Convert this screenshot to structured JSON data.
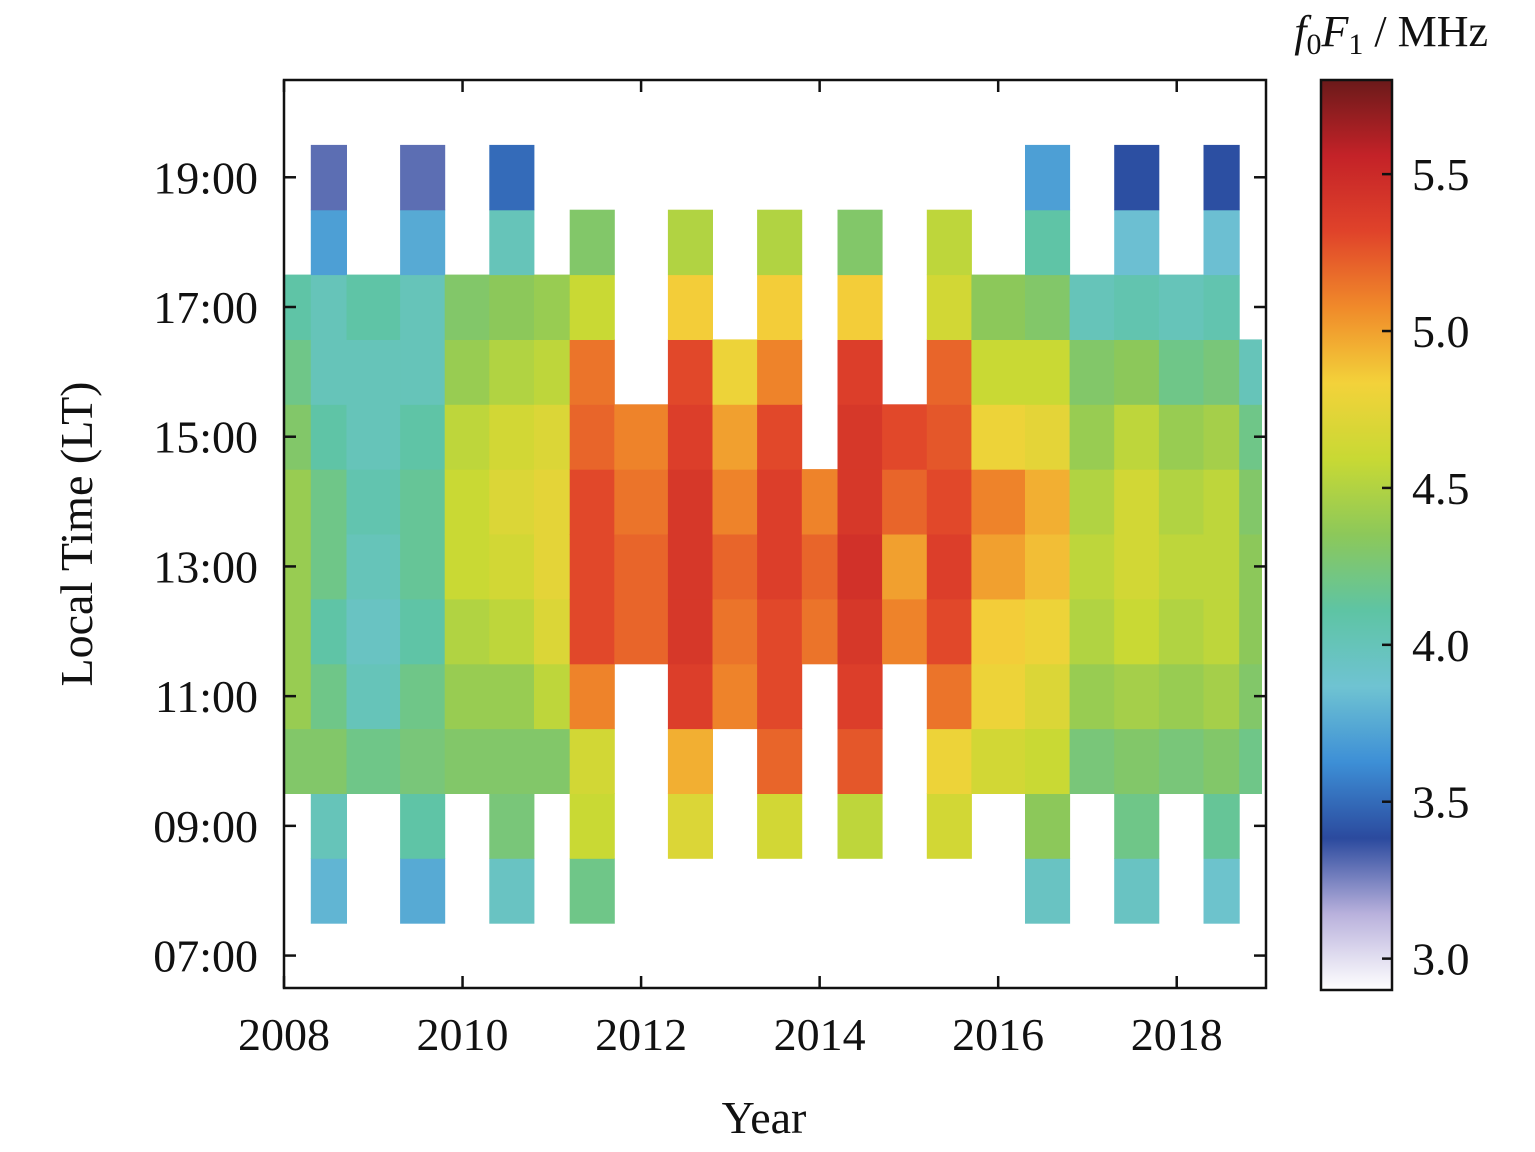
{
  "chart_data": {
    "type": "heatmap",
    "title": "",
    "xlabel": "Year",
    "ylabel": "Local Time (LT)",
    "xlim": [
      2008,
      2019
    ],
    "ylim": [
      6.5,
      20.5
    ],
    "x_ticks": [
      2008,
      2010,
      2012,
      2014,
      2016,
      2018
    ],
    "x_tick_labels": [
      "2008",
      "2010",
      "2012",
      "2014",
      "2016",
      "2018"
    ],
    "y_ticks": [
      7,
      9,
      11,
      13,
      15,
      17,
      19
    ],
    "y_tick_labels": [
      "07:00",
      "09:00",
      "11:00",
      "13:00",
      "15:00",
      "17:00",
      "19:00"
    ],
    "colorbar": {
      "label_italic_f": "f",
      "label_sub0": "0",
      "label_italic_F": "F",
      "label_sub1": "1",
      "label_unit": " / MHz",
      "range": [
        2.9,
        5.8
      ],
      "ticks": [
        3.0,
        3.5,
        4.0,
        4.5,
        5.0,
        5.5
      ],
      "tick_labels": [
        "3.0",
        "3.5",
        "4.0",
        "4.5",
        "5.0",
        "5.5"
      ],
      "colormap": [
        "#ffffff",
        "#b9b1dc",
        "#2b4a9e",
        "#3d8fd6",
        "#6fc3d2",
        "#5ec4a4",
        "#8cc85a",
        "#c8d934",
        "#f3d23a",
        "#f08a2a",
        "#e0432a",
        "#c42228",
        "#6b1a1a"
      ]
    },
    "values_unit": "MHz",
    "grid": false,
    "columns": [
      {
        "x0": 2008.0,
        "x1": 2008.3,
        "cells": [
          [
            9.5,
            10.5,
            4.3
          ],
          [
            10.5,
            11.5,
            4.4
          ],
          [
            11.5,
            12.5,
            4.4
          ],
          [
            12.5,
            13.5,
            4.4
          ],
          [
            13.5,
            14.5,
            4.4
          ],
          [
            14.5,
            15.5,
            4.3
          ],
          [
            15.5,
            16.5,
            4.2
          ],
          [
            16.5,
            17.5,
            4.1
          ]
        ]
      },
      {
        "x0": 2008.3,
        "x1": 2008.7,
        "cells": [
          [
            7.5,
            8.5,
            3.8
          ],
          [
            8.5,
            9.5,
            4.0
          ],
          [
            9.5,
            10.5,
            4.3
          ],
          [
            10.5,
            11.5,
            4.2
          ],
          [
            11.5,
            12.5,
            4.1
          ],
          [
            12.5,
            13.5,
            4.2
          ],
          [
            13.5,
            14.5,
            4.2
          ],
          [
            14.5,
            15.5,
            4.1
          ],
          [
            15.5,
            16.5,
            4.0
          ],
          [
            16.5,
            17.5,
            4.0
          ],
          [
            17.5,
            18.5,
            3.7
          ],
          [
            18.5,
            19.5,
            3.3
          ]
        ]
      },
      {
        "x0": 2008.7,
        "x1": 2009.3,
        "cells": [
          [
            9.5,
            10.5,
            4.2
          ],
          [
            10.5,
            11.5,
            4.0
          ],
          [
            11.5,
            12.5,
            3.95
          ],
          [
            12.5,
            13.5,
            4.0
          ],
          [
            13.5,
            14.5,
            4.05
          ],
          [
            14.5,
            15.5,
            4.0
          ],
          [
            15.5,
            16.5,
            4.0
          ],
          [
            16.5,
            17.5,
            4.1
          ]
        ]
      },
      {
        "x0": 2009.3,
        "x1": 2009.8,
        "cells": [
          [
            7.5,
            8.5,
            3.75
          ],
          [
            8.5,
            9.5,
            4.1
          ],
          [
            9.5,
            10.5,
            4.25
          ],
          [
            10.5,
            11.5,
            4.2
          ],
          [
            11.5,
            12.5,
            4.1
          ],
          [
            12.5,
            13.5,
            4.15
          ],
          [
            13.5,
            14.5,
            4.15
          ],
          [
            14.5,
            15.5,
            4.1
          ],
          [
            15.5,
            16.5,
            4.0
          ],
          [
            16.5,
            17.5,
            4.0
          ],
          [
            17.5,
            18.5,
            3.75
          ],
          [
            18.5,
            19.5,
            3.3
          ]
        ]
      },
      {
        "x0": 2009.8,
        "x1": 2010.3,
        "cells": [
          [
            9.5,
            10.5,
            4.3
          ],
          [
            10.5,
            11.5,
            4.4
          ],
          [
            11.5,
            12.5,
            4.5
          ],
          [
            12.5,
            13.5,
            4.6
          ],
          [
            13.5,
            14.5,
            4.6
          ],
          [
            14.5,
            15.5,
            4.55
          ],
          [
            15.5,
            16.5,
            4.4
          ],
          [
            16.5,
            17.5,
            4.3
          ]
        ]
      },
      {
        "x0": 2010.3,
        "x1": 2010.8,
        "cells": [
          [
            7.5,
            8.5,
            3.95
          ],
          [
            8.5,
            9.5,
            4.25
          ],
          [
            9.5,
            10.5,
            4.3
          ],
          [
            10.5,
            11.5,
            4.4
          ],
          [
            11.5,
            12.5,
            4.55
          ],
          [
            12.5,
            13.5,
            4.65
          ],
          [
            13.5,
            14.5,
            4.7
          ],
          [
            14.5,
            15.5,
            4.65
          ],
          [
            15.5,
            16.5,
            4.5
          ],
          [
            16.5,
            17.5,
            4.35
          ],
          [
            17.5,
            18.5,
            4.0
          ],
          [
            18.5,
            19.5,
            3.5
          ]
        ]
      },
      {
        "x0": 2010.8,
        "x1": 2011.2,
        "cells": [
          [
            9.5,
            10.5,
            4.3
          ],
          [
            10.5,
            11.5,
            4.55
          ],
          [
            11.5,
            12.5,
            4.7
          ],
          [
            12.5,
            13.5,
            4.75
          ],
          [
            13.5,
            14.5,
            4.75
          ],
          [
            14.5,
            15.5,
            4.7
          ],
          [
            15.5,
            16.5,
            4.55
          ],
          [
            16.5,
            17.5,
            4.4
          ]
        ]
      },
      {
        "x0": 2011.2,
        "x1": 2011.7,
        "cells": [
          [
            7.5,
            8.5,
            4.2
          ],
          [
            8.5,
            9.5,
            4.6
          ],
          [
            9.5,
            10.5,
            4.65
          ],
          [
            10.5,
            11.5,
            5.1
          ],
          [
            11.5,
            12.5,
            5.3
          ],
          [
            12.5,
            13.5,
            5.3
          ],
          [
            13.5,
            14.5,
            5.3
          ],
          [
            14.5,
            15.5,
            5.2
          ],
          [
            15.5,
            16.5,
            5.15
          ],
          [
            16.5,
            17.5,
            4.6
          ],
          [
            17.5,
            18.5,
            4.3
          ]
        ]
      },
      {
        "x0": 2011.7,
        "x1": 2012.3,
        "cells": [
          [
            11.5,
            12.5,
            5.2
          ],
          [
            12.5,
            13.5,
            5.2
          ],
          [
            13.5,
            14.5,
            5.15
          ],
          [
            14.5,
            15.5,
            5.1
          ]
        ]
      },
      {
        "x0": 2012.3,
        "x1": 2012.8,
        "cells": [
          [
            8.5,
            9.5,
            4.7
          ],
          [
            9.5,
            10.5,
            4.95
          ],
          [
            10.5,
            11.5,
            5.35
          ],
          [
            11.5,
            12.5,
            5.4
          ],
          [
            12.5,
            13.5,
            5.4
          ],
          [
            13.5,
            14.5,
            5.4
          ],
          [
            14.5,
            15.5,
            5.35
          ],
          [
            15.5,
            16.5,
            5.3
          ],
          [
            16.5,
            17.5,
            4.85
          ],
          [
            17.5,
            18.5,
            4.5
          ]
        ]
      },
      {
        "x0": 2012.8,
        "x1": 2013.3,
        "cells": [
          [
            10.5,
            11.5,
            5.1
          ],
          [
            11.5,
            12.5,
            5.15
          ],
          [
            12.5,
            13.5,
            5.2
          ],
          [
            13.5,
            14.5,
            5.1
          ],
          [
            14.5,
            15.5,
            5.0
          ],
          [
            15.5,
            16.5,
            4.8
          ]
        ]
      },
      {
        "x0": 2013.3,
        "x1": 2013.8,
        "cells": [
          [
            8.5,
            9.5,
            4.65
          ],
          [
            9.5,
            10.5,
            5.2
          ],
          [
            10.5,
            11.5,
            5.3
          ],
          [
            11.5,
            12.5,
            5.3
          ],
          [
            12.5,
            13.5,
            5.35
          ],
          [
            13.5,
            14.5,
            5.35
          ],
          [
            14.5,
            15.5,
            5.3
          ],
          [
            15.5,
            16.5,
            5.1
          ],
          [
            16.5,
            17.5,
            4.85
          ],
          [
            17.5,
            18.5,
            4.5
          ]
        ]
      },
      {
        "x0": 2013.8,
        "x1": 2014.2,
        "cells": [
          [
            11.5,
            12.5,
            5.15
          ],
          [
            12.5,
            13.5,
            5.2
          ],
          [
            13.5,
            14.5,
            5.1
          ]
        ]
      },
      {
        "x0": 2014.2,
        "x1": 2014.7,
        "cells": [
          [
            8.5,
            9.5,
            4.55
          ],
          [
            9.5,
            10.5,
            5.25
          ],
          [
            10.5,
            11.5,
            5.35
          ],
          [
            11.5,
            12.5,
            5.4
          ],
          [
            12.5,
            13.5,
            5.45
          ],
          [
            13.5,
            14.5,
            5.4
          ],
          [
            14.5,
            15.5,
            5.4
          ],
          [
            15.5,
            16.5,
            5.35
          ],
          [
            16.5,
            17.5,
            4.85
          ],
          [
            17.5,
            18.5,
            4.3
          ]
        ]
      },
      {
        "x0": 2014.7,
        "x1": 2015.2,
        "cells": [
          [
            11.5,
            12.5,
            5.1
          ],
          [
            12.5,
            13.5,
            5.0
          ],
          [
            13.5,
            14.5,
            5.2
          ],
          [
            14.5,
            15.5,
            5.3
          ]
        ]
      },
      {
        "x0": 2015.2,
        "x1": 2015.7,
        "cells": [
          [
            8.5,
            9.5,
            4.65
          ],
          [
            9.5,
            10.5,
            4.8
          ],
          [
            10.5,
            11.5,
            5.15
          ],
          [
            11.5,
            12.5,
            5.3
          ],
          [
            12.5,
            13.5,
            5.35
          ],
          [
            13.5,
            14.5,
            5.3
          ],
          [
            14.5,
            15.5,
            5.25
          ],
          [
            15.5,
            16.5,
            5.2
          ],
          [
            16.5,
            17.5,
            4.65
          ],
          [
            17.5,
            18.5,
            4.55
          ]
        ]
      },
      {
        "x0": 2015.7,
        "x1": 2016.3,
        "cells": [
          [
            9.5,
            10.5,
            4.65
          ],
          [
            10.5,
            11.5,
            4.8
          ],
          [
            11.5,
            12.5,
            4.85
          ],
          [
            12.5,
            13.5,
            5.0
          ],
          [
            13.5,
            14.5,
            5.1
          ],
          [
            14.5,
            15.5,
            4.8
          ],
          [
            15.5,
            16.5,
            4.6
          ],
          [
            16.5,
            17.5,
            4.35
          ]
        ]
      },
      {
        "x0": 2016.3,
        "x1": 2016.8,
        "cells": [
          [
            7.5,
            8.5,
            3.95
          ],
          [
            8.5,
            9.5,
            4.35
          ],
          [
            9.5,
            10.5,
            4.6
          ],
          [
            10.5,
            11.5,
            4.7
          ],
          [
            11.5,
            12.5,
            4.8
          ],
          [
            12.5,
            13.5,
            4.9
          ],
          [
            13.5,
            14.5,
            4.95
          ],
          [
            14.5,
            15.5,
            4.75
          ],
          [
            15.5,
            16.5,
            4.6
          ],
          [
            16.5,
            17.5,
            4.3
          ],
          [
            17.5,
            18.5,
            4.1
          ],
          [
            18.5,
            19.5,
            3.7
          ]
        ]
      },
      {
        "x0": 2016.8,
        "x1": 2017.3,
        "cells": [
          [
            9.5,
            10.5,
            4.25
          ],
          [
            10.5,
            11.5,
            4.4
          ],
          [
            11.5,
            12.5,
            4.5
          ],
          [
            12.5,
            13.5,
            4.55
          ],
          [
            13.5,
            14.5,
            4.5
          ],
          [
            14.5,
            15.5,
            4.4
          ],
          [
            15.5,
            16.5,
            4.3
          ],
          [
            16.5,
            17.5,
            4.0
          ]
        ]
      },
      {
        "x0": 2017.3,
        "x1": 2017.8,
        "cells": [
          [
            7.5,
            8.5,
            3.95
          ],
          [
            8.5,
            9.5,
            4.2
          ],
          [
            9.5,
            10.5,
            4.3
          ],
          [
            10.5,
            11.5,
            4.45
          ],
          [
            11.5,
            12.5,
            4.6
          ],
          [
            12.5,
            13.5,
            4.65
          ],
          [
            13.5,
            14.5,
            4.65
          ],
          [
            14.5,
            15.5,
            4.55
          ],
          [
            15.5,
            16.5,
            4.35
          ],
          [
            16.5,
            17.5,
            4.05
          ],
          [
            17.5,
            18.5,
            3.85
          ],
          [
            18.5,
            19.5,
            3.4
          ]
        ]
      },
      {
        "x0": 2017.8,
        "x1": 2018.3,
        "cells": [
          [
            9.5,
            10.5,
            4.25
          ],
          [
            10.5,
            11.5,
            4.4
          ],
          [
            11.5,
            12.5,
            4.5
          ],
          [
            12.5,
            13.5,
            4.55
          ],
          [
            13.5,
            14.5,
            4.5
          ],
          [
            14.5,
            15.5,
            4.4
          ],
          [
            15.5,
            16.5,
            4.2
          ],
          [
            16.5,
            17.5,
            4.0
          ]
        ]
      },
      {
        "x0": 2018.3,
        "x1": 2018.7,
        "cells": [
          [
            7.5,
            8.5,
            3.9
          ],
          [
            8.5,
            9.5,
            4.15
          ],
          [
            9.5,
            10.5,
            4.3
          ],
          [
            10.5,
            11.5,
            4.45
          ],
          [
            11.5,
            12.5,
            4.55
          ],
          [
            12.5,
            13.5,
            4.55
          ],
          [
            13.5,
            14.5,
            4.55
          ],
          [
            14.5,
            15.5,
            4.45
          ],
          [
            15.5,
            16.5,
            4.25
          ],
          [
            16.5,
            17.5,
            4.05
          ],
          [
            17.5,
            18.5,
            3.85
          ],
          [
            18.5,
            19.5,
            3.4
          ]
        ]
      },
      {
        "x0": 2018.7,
        "x1": 2018.95,
        "cells": [
          [
            9.5,
            10.5,
            4.2
          ],
          [
            10.5,
            11.5,
            4.3
          ],
          [
            11.5,
            12.5,
            4.35
          ],
          [
            12.5,
            13.5,
            4.35
          ],
          [
            13.5,
            14.5,
            4.3
          ],
          [
            14.5,
            15.5,
            4.2
          ],
          [
            15.5,
            16.5,
            4.0
          ]
        ]
      }
    ]
  }
}
